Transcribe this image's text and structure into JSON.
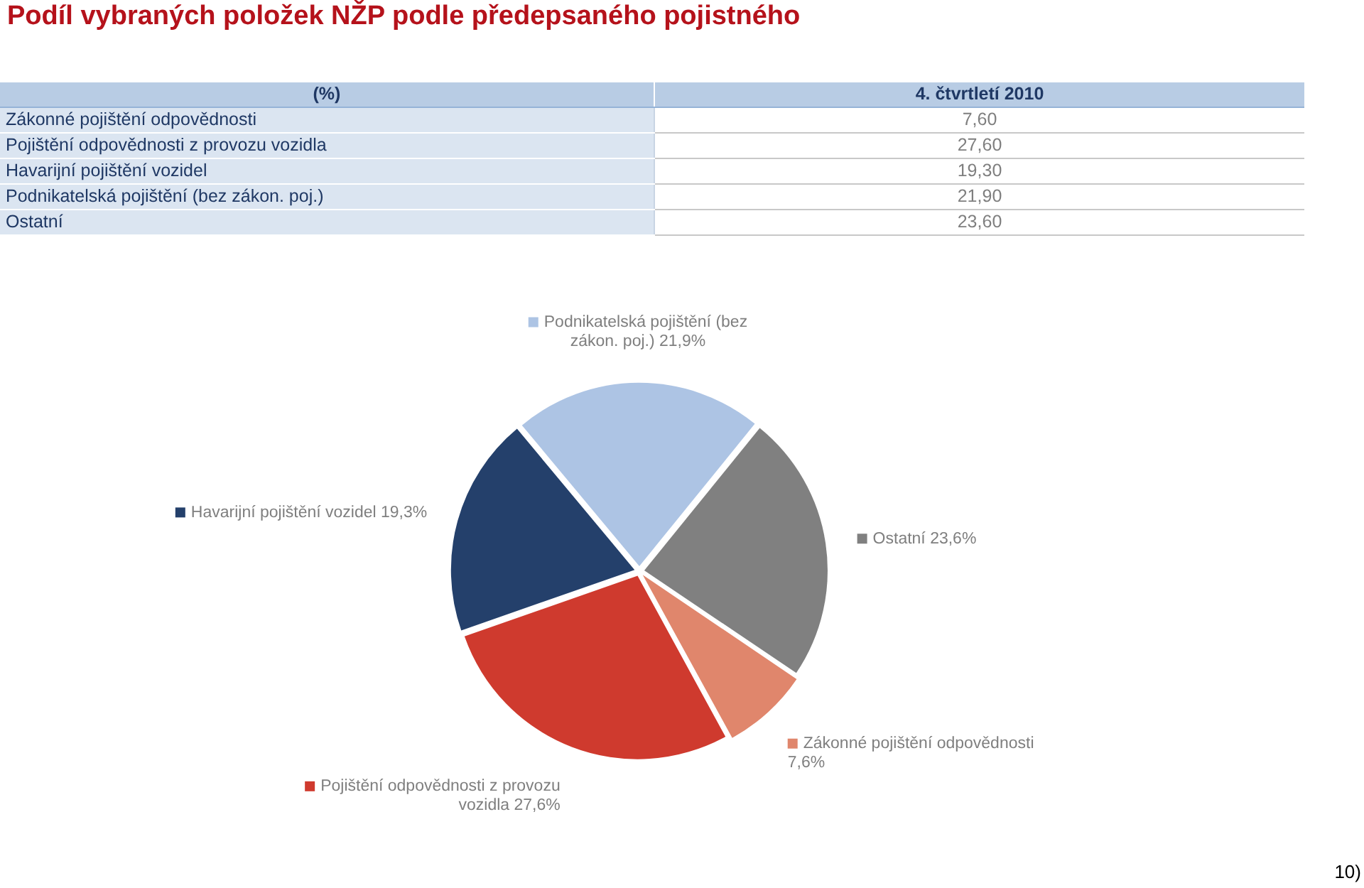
{
  "chart_data": [
    {
      "type": "other",
      "title": "Podíl vybraných položek NŽP podle předepsaného pojistného",
      "categories": [
        "Zákonné pojištění odpovědnosti",
        "Pojištění odpovědnosti z provozu vozidla",
        "Havarijní pojištění vozidel",
        "Podnikatelská pojištění (bez zákon. poj.)",
        "Ostatní"
      ],
      "series": [
        {
          "name": "4. čtvrtletí 2010",
          "values": [
            7.6,
            27.6,
            19.3,
            21.9,
            23.6
          ],
          "value_labels": [
            "7,60",
            "27,60",
            "19,30",
            "21,90",
            "23,60"
          ]
        }
      ],
      "annotations": [
        "(%)"
      ]
    },
    {
      "type": "pie",
      "categories": [
        "Zákonné pojištění odpovědnosti",
        "Pojištění odpovědnosti z provozu vozidla",
        "Havarijní pojištění vozidel",
        "Podnikatelská pojištění (bez zákon. poj.)",
        "Ostatní"
      ],
      "values": [
        7.6,
        27.6,
        19.3,
        21.9,
        23.6
      ],
      "colors": [
        "#e0866c",
        "#cf3a2e",
        "#24406b",
        "#adc4e4",
        "#808080"
      ],
      "value_labels": [
        "7,6%",
        "27,6%",
        "19,3%",
        "21,9%",
        "23,6%"
      ],
      "legend": "center",
      "annotations": [
        "10)"
      ]
    }
  ]
}
